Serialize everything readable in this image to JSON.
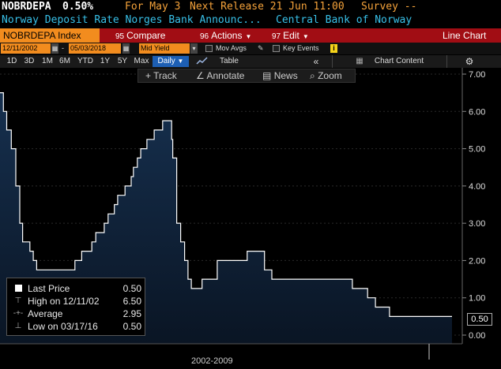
{
  "header": {
    "ticker": "NOBRDEPA",
    "last_value": "0.50%",
    "for_label": "For May 3",
    "next_release": "Next Release 21 Jun 11:00",
    "survey": "Survey --",
    "description": "Norway Deposit Rate Norges Bank Announc...",
    "source": "Central Bank of Norway"
  },
  "menubar": {
    "security": "NOBRDEPA Index",
    "compare_num": "95",
    "compare": "Compare",
    "actions_num": "96",
    "actions": "Actions",
    "edit_num": "97",
    "edit": "Edit",
    "chart_type": "Line Chart"
  },
  "daterow": {
    "start_date": "12/11/2002",
    "end_date": "05/03/2018",
    "field": "Mid Yield",
    "mov_avgs": "Mov Avgs",
    "key_events": "Key Events"
  },
  "periods": [
    "1D",
    "3D",
    "1M",
    "6M",
    "YTD",
    "1Y",
    "5Y",
    "Max"
  ],
  "frequency": "Daily",
  "table_label": "Table",
  "chart_content": "Chart Content",
  "tools": {
    "track": "Track",
    "annotate": "Annotate",
    "news": "News",
    "zoom": "Zoom"
  },
  "legend": {
    "last_label": "Last Price",
    "last_value": "0.50",
    "high_label": "High on 12/11/02",
    "high_value": "6.50",
    "avg_label": "Average",
    "avg_value": "2.95",
    "low_label": "Low on 03/17/16",
    "low_value": "0.50"
  },
  "last_badge": "0.50",
  "x_axis_label": "2002-2009",
  "colors": {
    "accent": "#f28c1e",
    "menubar": "#a10d14",
    "line": "#ffffff",
    "fill_top": "#16304f",
    "fill_bottom": "#0a1524"
  },
  "chart_data": {
    "type": "area",
    "title": "",
    "ylabel": "",
    "xlabel": "2002-2009",
    "ylim": [
      0,
      7
    ],
    "y_ticks": [
      "7.00",
      "6.00",
      "5.00",
      "4.00",
      "3.00",
      "2.00",
      "1.00",
      "0.00"
    ],
    "grid": true,
    "series": [
      {
        "x": [
          "2002-12-11",
          "2003-01-22",
          "2003-03-05",
          "2003-05-01",
          "2003-06-26",
          "2003-08-14",
          "2003-09-18",
          "2003-11-01",
          "2003-12-18",
          "2004-01-29",
          "2004-03-11",
          "2005-06-30",
          "2005-09-22",
          "2005-11-03",
          "2006-01-26",
          "2006-03-16",
          "2006-05-31",
          "2006-06-29",
          "2006-08-17",
          "2006-09-28",
          "2006-11-02",
          "2006-12-13",
          "2007-01-24",
          "2007-03-15",
          "2007-05-31",
          "2007-06-27",
          "2007-08-15",
          "2007-09-26",
          "2007-12-12",
          "2008-03-12",
          "2008-06-25",
          "2008-10-15",
          "2008-10-29",
          "2008-12-17",
          "2009-02-04",
          "2009-03-25",
          "2009-05-06",
          "2009-06-17",
          "2009-10-28",
          "2010-05-05",
          "2011-05-12",
          "2011-12-14",
          "2012-03-14",
          "2012-06-20",
          "2013-01-01",
          "2014-12-11",
          "2015-06-18",
          "2015-09-24",
          "2016-03-17",
          "2018-05-03"
        ],
        "values": [
          6.5,
          6.0,
          5.5,
          5.0,
          4.0,
          3.0,
          2.5,
          2.5,
          2.25,
          2.0,
          1.75,
          2.0,
          2.25,
          2.25,
          2.5,
          2.75,
          2.75,
          3.0,
          3.25,
          3.25,
          3.5,
          3.75,
          3.75,
          4.0,
          4.25,
          4.5,
          4.75,
          5.0,
          5.25,
          5.5,
          5.75,
          5.25,
          4.75,
          3.0,
          2.5,
          2.0,
          1.5,
          1.25,
          1.5,
          2.0,
          2.25,
          1.75,
          1.5,
          1.5,
          1.5,
          1.25,
          1.0,
          0.75,
          0.5,
          0.5
        ]
      }
    ]
  }
}
